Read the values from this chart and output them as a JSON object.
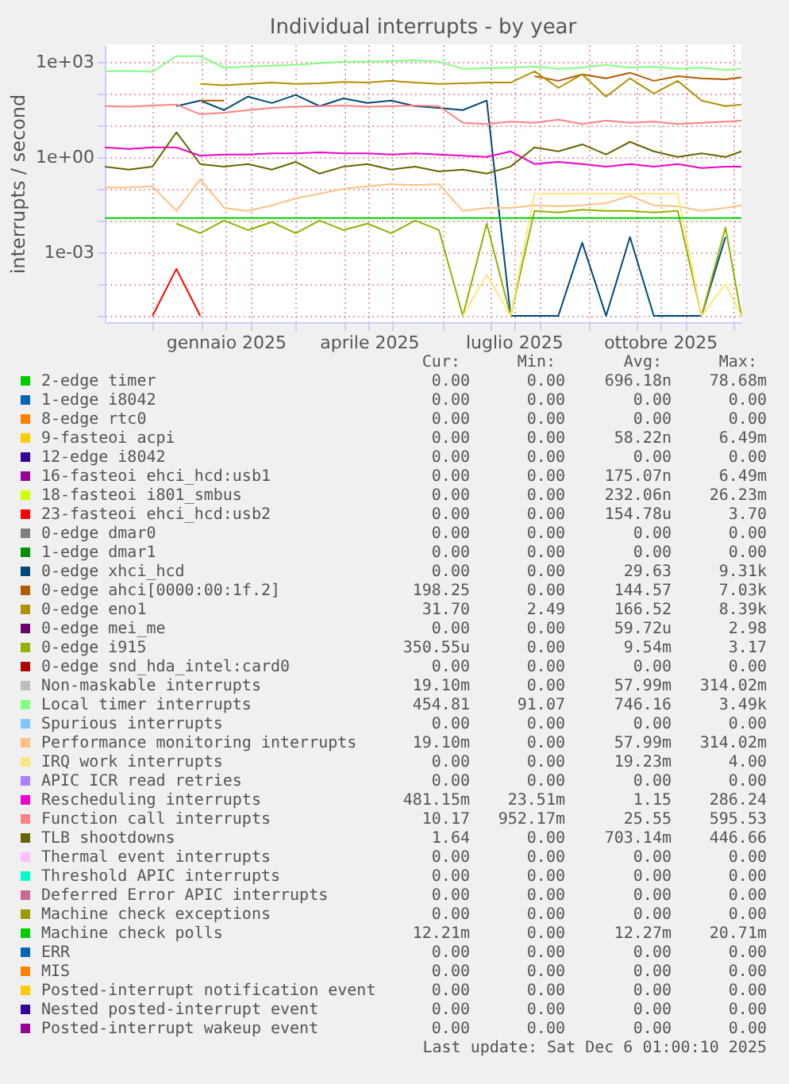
{
  "chart_data": {
    "type": "line",
    "title": "Individual interrupts - by year",
    "ylabel": "interrupts / second",
    "log": "y",
    "grid": true,
    "legend": "bottom",
    "xlim": [
      "2024-11-01",
      "2025-12-06"
    ],
    "xticks": [
      {
        "value": "2025-01-16",
        "label": "gennaio 2025"
      },
      {
        "value": "2025-04-16",
        "label": "aprile 2025"
      },
      {
        "value": "2025-07-16",
        "label": "luglio 2025"
      },
      {
        "value": "2025-10-16",
        "label": "ottobre 2025"
      },
      {
        "value": "2024-12-01",
        "label": null
      },
      {
        "value": "2025-01-01",
        "label": null
      },
      {
        "value": "2025-02-01",
        "label": null
      },
      {
        "value": "2025-03-01",
        "label": null
      },
      {
        "value": "2025-04-01",
        "label": null
      },
      {
        "value": "2025-05-01",
        "label": null
      },
      {
        "value": "2025-06-01",
        "label": null
      },
      {
        "value": "2025-07-01",
        "label": null
      },
      {
        "value": "2025-08-01",
        "label": null
      },
      {
        "value": "2025-09-01",
        "label": null
      },
      {
        "value": "2025-10-01",
        "label": null
      },
      {
        "value": "2025-11-01",
        "label": null
      },
      {
        "value": "2025-12-01",
        "label": null
      }
    ],
    "ylim": [
      6.3e-06,
      3500
    ],
    "yticks": [
      {
        "value": 0.001,
        "label": "1e-03"
      },
      {
        "value": 1,
        "label": "1e+00"
      },
      {
        "value": 1000,
        "label": "1e+03"
      },
      {
        "value": 1e-05,
        "label": null
      },
      {
        "value": 0.0001,
        "label": null
      },
      {
        "value": 0.01,
        "label": null
      },
      {
        "value": 0.1,
        "label": null
      },
      {
        "value": 10,
        "label": null
      },
      {
        "value": 100,
        "label": null
      }
    ],
    "x": [
      "2024-11-01",
      "2024-11-16",
      "2024-12-01",
      "2024-12-16",
      "2024-12-31",
      "2025-01-15",
      "2025-01-30",
      "2025-02-14",
      "2025-03-01",
      "2025-03-16",
      "2025-03-31",
      "2025-04-15",
      "2025-04-30",
      "2025-05-15",
      "2025-05-30",
      "2025-06-14",
      "2025-06-29",
      "2025-07-14",
      "2025-07-29",
      "2025-08-13",
      "2025-08-28",
      "2025-09-12",
      "2025-09-27",
      "2025-10-12",
      "2025-10-27",
      "2025-11-11",
      "2025-11-26",
      "2025-12-06"
    ],
    "series": [
      {
        "name": "2-edge      timer",
        "color": "#00cc00",
        "values": [
          null,
          null,
          null,
          null,
          null,
          null,
          null,
          null,
          null,
          null,
          null,
          null,
          null,
          null,
          null,
          null,
          null,
          null,
          null,
          null,
          null,
          null,
          null,
          null,
          null,
          null,
          null,
          null
        ]
      },
      {
        "name": "1-edge      i8042",
        "color": "#0066b3",
        "values": [
          null,
          null,
          null,
          null,
          null,
          null,
          null,
          null,
          null,
          null,
          null,
          null,
          null,
          null,
          null,
          null,
          null,
          null,
          null,
          null,
          null,
          null,
          null,
          null,
          null,
          null,
          null,
          null
        ]
      },
      {
        "name": "8-edge      rtc0",
        "color": "#ff8000",
        "values": [
          null,
          null,
          null,
          null,
          null,
          null,
          null,
          null,
          null,
          null,
          null,
          null,
          null,
          null,
          null,
          null,
          null,
          null,
          null,
          null,
          null,
          null,
          null,
          null,
          null,
          null,
          null,
          null
        ]
      },
      {
        "name": "9-fasteoi   acpi",
        "color": "#ffcc00",
        "values": [
          null,
          null,
          null,
          null,
          null,
          null,
          null,
          null,
          null,
          null,
          null,
          null,
          null,
          null,
          null,
          null,
          null,
          null,
          null,
          null,
          null,
          null,
          null,
          null,
          null,
          null,
          null,
          null
        ]
      },
      {
        "name": "12-edge      i8042",
        "color": "#330099",
        "values": [
          null,
          null,
          null,
          null,
          null,
          null,
          null,
          null,
          null,
          null,
          null,
          null,
          null,
          null,
          null,
          null,
          null,
          null,
          null,
          null,
          null,
          null,
          null,
          null,
          null,
          null,
          null,
          null
        ]
      },
      {
        "name": "16-fasteoi   ehci_hcd:usb1",
        "color": "#990099",
        "values": [
          null,
          null,
          null,
          null,
          null,
          null,
          null,
          null,
          null,
          null,
          null,
          null,
          null,
          null,
          null,
          null,
          null,
          null,
          null,
          null,
          null,
          null,
          null,
          null,
          null,
          null,
          null,
          null
        ]
      },
      {
        "name": "18-fasteoi   i801_smbus",
        "color": "#ccff00",
        "values": [
          null,
          null,
          null,
          null,
          null,
          null,
          null,
          null,
          null,
          null,
          null,
          null,
          null,
          null,
          null,
          null,
          null,
          null,
          null,
          null,
          null,
          null,
          null,
          null,
          null,
          null,
          null,
          null
        ]
      },
      {
        "name": "23-fasteoi   ehci_hcd:usb2",
        "color": "#ff0000",
        "values": [
          null,
          null,
          1e-05,
          0.0003,
          1e-05,
          null,
          null,
          null,
          null,
          null,
          null,
          null,
          null,
          null,
          null,
          null,
          null,
          null,
          null,
          null,
          null,
          null,
          null,
          null,
          null,
          null,
          null,
          null
        ]
      },
      {
        "name": "0-edge      dmar0",
        "color": "#808080",
        "values": [
          null,
          null,
          null,
          null,
          null,
          null,
          null,
          null,
          null,
          null,
          null,
          null,
          null,
          null,
          null,
          null,
          null,
          null,
          null,
          null,
          null,
          null,
          null,
          null,
          null,
          null,
          null,
          null
        ]
      },
      {
        "name": "1-edge      dmar1",
        "color": "#008f00",
        "values": [
          null,
          null,
          null,
          null,
          null,
          null,
          null,
          null,
          null,
          null,
          null,
          null,
          null,
          null,
          null,
          null,
          null,
          null,
          null,
          null,
          null,
          null,
          null,
          null,
          null,
          null,
          null,
          null
        ]
      },
      {
        "name": "0-edge      xhci_hcd",
        "color": "#00487d",
        "values": [
          null,
          null,
          null,
          40,
          60,
          30,
          80,
          50,
          90,
          40,
          70,
          50,
          60,
          40,
          35,
          30,
          60,
          1e-05,
          1e-05,
          1e-05,
          0.002,
          1e-05,
          0.003,
          1e-05,
          1e-05,
          1e-05,
          0.003,
          null
        ]
      },
      {
        "name": "0-edge      ahci[0000:00:1f.2]",
        "color": "#b35a00",
        "values": [
          null,
          null,
          null,
          null,
          60,
          60,
          null,
          null,
          null,
          null,
          null,
          null,
          null,
          null,
          null,
          null,
          null,
          null,
          350,
          250,
          400,
          300,
          450,
          250,
          350,
          300,
          280,
          320
        ]
      },
      {
        "name": "0-edge      eno1",
        "color": "#b38f00",
        "values": [
          null,
          null,
          null,
          null,
          200,
          180,
          200,
          220,
          200,
          210,
          230,
          220,
          250,
          220,
          200,
          210,
          220,
          220,
          500,
          150,
          400,
          80,
          300,
          100,
          250,
          60,
          40,
          45
        ]
      },
      {
        "name": "0-edge      mei_me",
        "color": "#6b006b",
        "values": [
          null,
          null,
          null,
          null,
          null,
          null,
          null,
          null,
          null,
          null,
          null,
          null,
          null,
          null,
          null,
          null,
          null,
          null,
          null,
          null,
          null,
          null,
          null,
          null,
          null,
          null,
          null,
          null
        ]
      },
      {
        "name": "0-edge      i915",
        "color": "#8fb300",
        "values": [
          null,
          null,
          null,
          0.008,
          0.004,
          0.01,
          0.005,
          0.009,
          0.004,
          0.01,
          0.005,
          0.008,
          0.004,
          0.01,
          0.005,
          1e-05,
          0.008,
          1e-05,
          0.02,
          0.018,
          0.022,
          0.02,
          0.02,
          0.018,
          0.02,
          1e-05,
          0.006,
          1e-05
        ]
      },
      {
        "name": "0-edge      snd_hda_intel:card0",
        "color": "#b30000",
        "values": [
          null,
          null,
          null,
          null,
          null,
          null,
          null,
          null,
          null,
          null,
          null,
          null,
          null,
          null,
          null,
          null,
          null,
          null,
          null,
          null,
          null,
          null,
          null,
          null,
          null,
          null,
          null,
          null
        ]
      },
      {
        "name": "Non-maskable interrupts",
        "color": "#bebebe",
        "values": [
          null,
          null,
          null,
          null,
          null,
          null,
          null,
          null,
          null,
          null,
          null,
          null,
          null,
          null,
          null,
          null,
          null,
          null,
          null,
          null,
          null,
          null,
          null,
          null,
          null,
          null,
          null,
          null
        ]
      },
      {
        "name": "Local timer interrupts",
        "color": "#80ff80",
        "values": [
          500,
          520,
          480,
          1500,
          1500,
          650,
          700,
          750,
          800,
          900,
          1000,
          1000,
          1050,
          1100,
          1000,
          600,
          620,
          650,
          700,
          600,
          650,
          800,
          650,
          700,
          600,
          650,
          550,
          600
        ]
      },
      {
        "name": "Spurious interrupts",
        "color": "#80c9ff",
        "values": [
          null,
          null,
          null,
          null,
          null,
          null,
          null,
          null,
          null,
          null,
          null,
          null,
          null,
          null,
          null,
          null,
          null,
          null,
          null,
          null,
          null,
          null,
          null,
          null,
          null,
          null,
          null,
          null
        ]
      },
      {
        "name": "Performance monitoring interrupts",
        "color": "#ffc080",
        "values": [
          0.11,
          0.11,
          0.12,
          0.02,
          0.2,
          0.025,
          0.02,
          0.03,
          0.05,
          0.07,
          0.1,
          0.12,
          0.14,
          0.13,
          0.14,
          0.02,
          0.025,
          0.025,
          0.03,
          0.028,
          0.03,
          0.035,
          0.06,
          0.03,
          0.028,
          0.02,
          0.025,
          0.03
        ]
      },
      {
        "name": "IRQ work interrupts",
        "color": "#ffe680",
        "values": [
          null,
          null,
          null,
          null,
          null,
          null,
          null,
          null,
          null,
          null,
          null,
          null,
          null,
          null,
          null,
          1e-05,
          0.0002,
          1e-05,
          0.07,
          0.07,
          0.07,
          0.07,
          0.07,
          0.07,
          0.07,
          1e-05,
          0.0001,
          1e-05
        ]
      },
      {
        "name": "APIC ICR read retries",
        "color": "#aa80ff",
        "values": [
          null,
          null,
          null,
          null,
          null,
          null,
          null,
          null,
          null,
          null,
          null,
          null,
          null,
          null,
          null,
          null,
          null,
          null,
          null,
          null,
          null,
          null,
          null,
          null,
          null,
          null,
          null,
          null
        ]
      },
      {
        "name": "Rescheduling interrupts",
        "color": "#ee00cc",
        "values": [
          2,
          1.8,
          2,
          2,
          1.1,
          1.2,
          1.2,
          1.3,
          1.3,
          1.4,
          1.3,
          1.3,
          1.2,
          1.3,
          1.2,
          1.1,
          1.0,
          1.5,
          0.6,
          0.7,
          0.6,
          0.5,
          0.6,
          0.5,
          0.6,
          0.45,
          0.5,
          0.5
        ]
      },
      {
        "name": "Function call interrupts",
        "color": "#ff8080",
        "values": [
          40,
          38,
          42,
          45,
          22,
          25,
          30,
          35,
          38,
          40,
          42,
          38,
          40,
          42,
          40,
          12,
          11,
          13,
          12,
          15,
          11,
          14,
          12,
          13,
          11,
          12,
          13,
          14
        ]
      },
      {
        "name": "TLB shootdowns",
        "color": "#666600",
        "values": [
          0.5,
          0.4,
          0.5,
          6,
          0.6,
          0.5,
          0.6,
          0.4,
          0.7,
          0.3,
          0.5,
          0.6,
          0.4,
          0.5,
          0.35,
          0.4,
          0.3,
          0.5,
          2,
          1.5,
          2.5,
          1.2,
          3,
          1.5,
          1,
          1.3,
          1,
          1.5
        ]
      },
      {
        "name": "Thermal event interrupts",
        "color": "#ffbfff",
        "values": [
          null,
          null,
          null,
          null,
          null,
          null,
          null,
          null,
          null,
          null,
          null,
          null,
          null,
          null,
          null,
          null,
          null,
          null,
          null,
          null,
          null,
          null,
          null,
          null,
          null,
          null,
          null,
          null
        ]
      },
      {
        "name": "Threshold APIC interrupts",
        "color": "#00ffcc",
        "values": [
          null,
          null,
          null,
          null,
          null,
          null,
          null,
          null,
          null,
          null,
          null,
          null,
          null,
          null,
          null,
          null,
          null,
          null,
          null,
          null,
          null,
          null,
          null,
          null,
          null,
          null,
          null,
          null
        ]
      },
      {
        "name": "Deferred Error APIC interrupts",
        "color": "#cc6699",
        "values": [
          null,
          null,
          null,
          null,
          null,
          null,
          null,
          null,
          null,
          null,
          null,
          null,
          null,
          null,
          null,
          null,
          null,
          null,
          null,
          null,
          null,
          null,
          null,
          null,
          null,
          null,
          null,
          null
        ]
      },
      {
        "name": "Machine check exceptions",
        "color": "#999900",
        "values": [
          null,
          null,
          null,
          null,
          null,
          null,
          null,
          null,
          null,
          null,
          null,
          null,
          null,
          null,
          null,
          null,
          null,
          null,
          null,
          null,
          null,
          null,
          null,
          null,
          null,
          null,
          null,
          null
        ]
      },
      {
        "name": "Machine check polls",
        "color": "#00cc00",
        "values": [
          0.012,
          0.012,
          0.012,
          0.012,
          0.012,
          0.012,
          0.012,
          0.012,
          0.012,
          0.012,
          0.012,
          0.012,
          0.012,
          0.012,
          0.012,
          0.012,
          0.012,
          0.012,
          0.012,
          0.012,
          0.012,
          0.012,
          0.012,
          0.012,
          0.012,
          0.012,
          0.012,
          0.012
        ]
      },
      {
        "name": "ERR",
        "color": "#0066b3",
        "values": [
          null,
          null,
          null,
          null,
          null,
          null,
          null,
          null,
          null,
          null,
          null,
          null,
          null,
          null,
          null,
          null,
          null,
          null,
          null,
          null,
          null,
          null,
          null,
          null,
          null,
          null,
          null,
          null
        ]
      },
      {
        "name": "MIS",
        "color": "#ff8000",
        "values": [
          null,
          null,
          null,
          null,
          null,
          null,
          null,
          null,
          null,
          null,
          null,
          null,
          null,
          null,
          null,
          null,
          null,
          null,
          null,
          null,
          null,
          null,
          null,
          null,
          null,
          null,
          null,
          null
        ]
      },
      {
        "name": "Posted-interrupt notification event",
        "color": "#ffcc00",
        "values": [
          null,
          null,
          null,
          null,
          null,
          null,
          null,
          null,
          null,
          null,
          null,
          null,
          null,
          null,
          null,
          null,
          null,
          null,
          null,
          null,
          null,
          null,
          null,
          null,
          null,
          null,
          null,
          null
        ]
      },
      {
        "name": "Nested posted-interrupt event",
        "color": "#330099",
        "values": [
          null,
          null,
          null,
          null,
          null,
          null,
          null,
          null,
          null,
          null,
          null,
          null,
          null,
          null,
          null,
          null,
          null,
          null,
          null,
          null,
          null,
          null,
          null,
          null,
          null,
          null,
          null,
          null
        ]
      },
      {
        "name": "Posted-interrupt wakeup event",
        "color": "#990099",
        "values": [
          null,
          null,
          null,
          null,
          null,
          null,
          null,
          null,
          null,
          null,
          null,
          null,
          null,
          null,
          null,
          null,
          null,
          null,
          null,
          null,
          null,
          null,
          null,
          null,
          null,
          null,
          null,
          null
        ]
      }
    ],
    "annotations": [
      "Cur: Min: Avg: Max:",
      "0.00 0.00 696.18n 78.68m",
      "0.00 0.00 0.00 0.00",
      "0.00 0.00 0.00 0.00",
      "0.00 0.00 58.22n 6.49m",
      "0.00 0.00 0.00 0.00",
      "0.00 0.00 175.07n 6.49m",
      "0.00 0.00 232.06n 26.23m",
      "0.00 0.00 154.78u 3.70",
      "0.00 0.00 0.00 0.00",
      "0.00 0.00 0.00 0.00",
      "0.00 0.00 29.63 9.31k",
      "198.25 0.00 144.57 7.03k",
      "31.70 2.49 166.52 8.39k",
      "0.00 0.00 59.72u 2.98",
      "350.55u 0.00 9.54m 3.17",
      "0.00 0.00 0.00 0.00",
      "19.10m 0.00 57.99m 314.02m",
      "454.81 91.07 746.16 3.49k",
      "0.00 0.00 0.00 0.00",
      "19.10m 0.00 57.99m 314.02m",
      "0.00 0.00 19.23m 4.00",
      "0.00 0.00 0.00 0.00",
      "481.15m 23.51m 1.15 286.24",
      "10.17 952.17m 25.55 595.53",
      "1.64 0.00 703.14m 446.66",
      "0.00 0.00 0.00 0.00",
      "0.00 0.00 0.00 0.00",
      "0.00 0.00 0.00 0.00",
      "0.00 0.00 0.00 0.00",
      "12.21m 0.00 12.27m 20.71m",
      "0.00 0.00 0.00 0.00",
      "0.00 0.00 0.00 0.00",
      "0.00 0.00 0.00 0.00",
      "0.00 0.00 0.00 0.00",
      "0.00 0.00 0.00 0.00",
      "Last update: Sat Dec  6 01:00:10 2025"
    ]
  }
}
